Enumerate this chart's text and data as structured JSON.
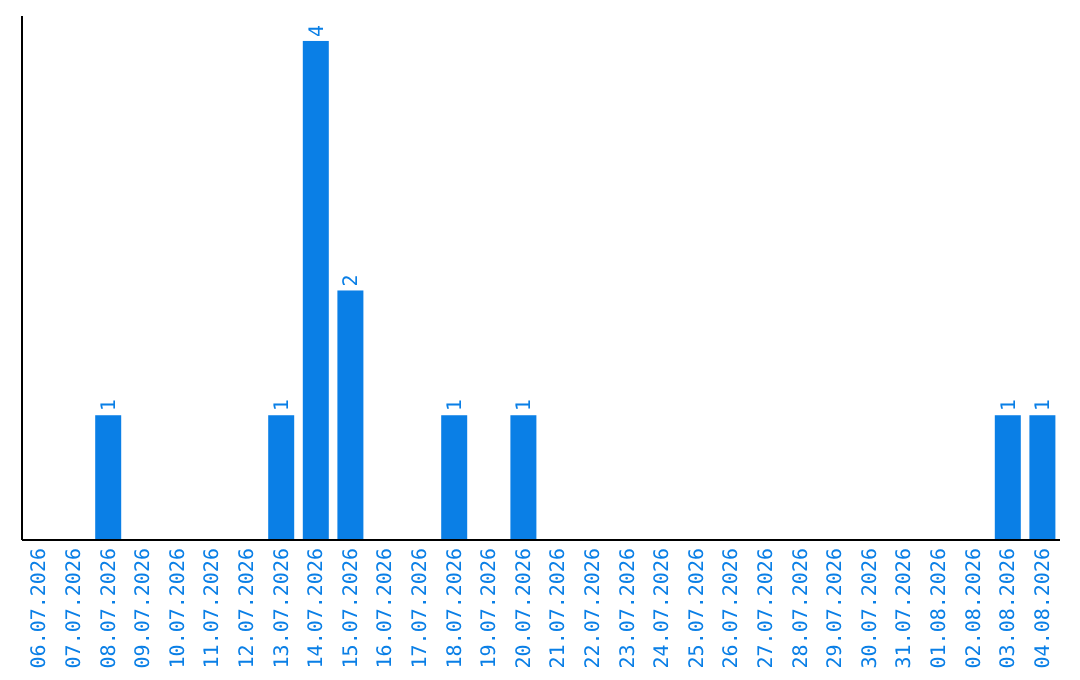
{
  "chart_data": {
    "type": "bar",
    "categories": [
      "06.07.2026",
      "07.07.2026",
      "08.07.2026",
      "09.07.2026",
      "10.07.2026",
      "11.07.2026",
      "12.07.2026",
      "13.07.2026",
      "14.07.2026",
      "15.07.2026",
      "16.07.2026",
      "17.07.2026",
      "18.07.2026",
      "19.07.2026",
      "20.07.2026",
      "21.07.2026",
      "22.07.2026",
      "23.07.2026",
      "24.07.2026",
      "25.07.2026",
      "26.07.2026",
      "27.07.2026",
      "28.07.2026",
      "29.07.2026",
      "30.07.2026",
      "31.07.2026",
      "01.08.2026",
      "02.08.2026",
      "03.08.2026",
      "04.08.2026"
    ],
    "values": [
      0,
      0,
      1,
      0,
      0,
      0,
      0,
      1,
      4,
      2,
      0,
      0,
      1,
      0,
      1,
      0,
      0,
      0,
      0,
      0,
      0,
      0,
      0,
      0,
      0,
      0,
      0,
      0,
      1,
      1
    ],
    "value_labels": [
      null,
      null,
      "1",
      null,
      null,
      null,
      null,
      "1",
      "4",
      "2",
      null,
      null,
      "1",
      null,
      "1",
      null,
      null,
      null,
      null,
      null,
      null,
      null,
      null,
      null,
      null,
      null,
      null,
      null,
      "1",
      "1"
    ],
    "color": "#0a7fe6",
    "ylim": [
      0,
      4.2
    ],
    "tick_labels": "x",
    "grid": false,
    "legend": false
  }
}
